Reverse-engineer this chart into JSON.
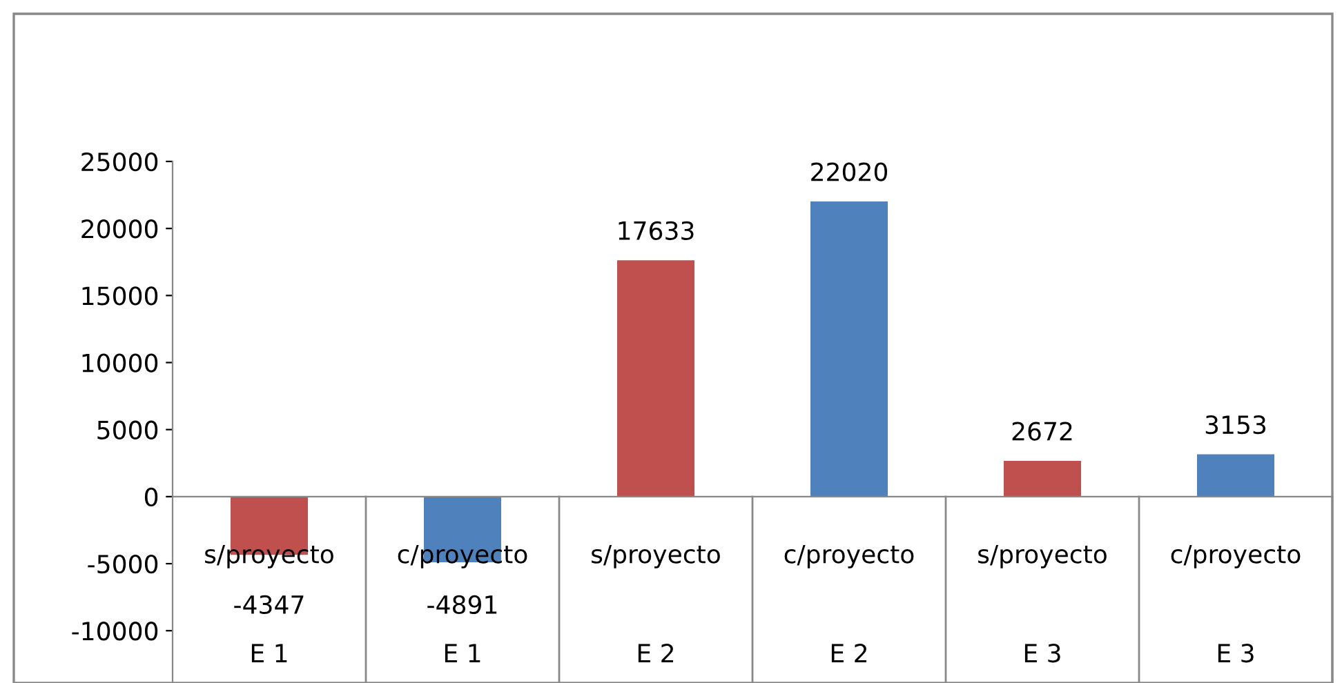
{
  "chart_data": {
    "type": "bar",
    "categories": [
      "s/proyecto\nE 1",
      "c/proyecto\nE 1",
      "s/proyecto\nE 2",
      "c/proyecto\nE 2",
      "s/proyecto\nE 3",
      "c/proyecto\nE 3"
    ],
    "values": [
      -4347,
      -4891,
      17633,
      22020,
      2672,
      3153
    ],
    "colors": [
      "#c0504d",
      "#4f81bd",
      "#c0504d",
      "#4f81bd",
      "#c0504d",
      "#4f81bd"
    ],
    "data_labels": true,
    "ylim": [
      -13900,
      25000
    ],
    "yticks": [
      -10000,
      -5000,
      0,
      5000,
      10000,
      15000,
      20000,
      25000
    ],
    "legend": false
  }
}
